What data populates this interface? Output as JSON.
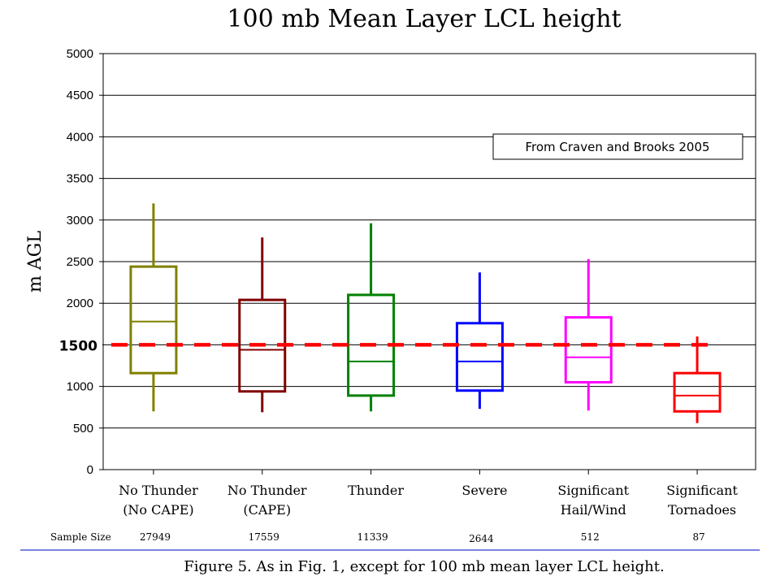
{
  "chart_data": {
    "type": "box",
    "title": "100 mb Mean Layer LCL height",
    "ylabel": "m AGL",
    "ylim": [
      0,
      5000
    ],
    "yticks": [
      0,
      500,
      1000,
      1500,
      2000,
      2500,
      3000,
      3500,
      4000,
      4500,
      5000
    ],
    "grid": true,
    "categories": [
      {
        "label": "No Thunder",
        "sublabel": "(No CAPE)"
      },
      {
        "label": "No Thunder",
        "sublabel": "(CAPE)"
      },
      {
        "label": "Thunder",
        "sublabel": ""
      },
      {
        "label": "Severe",
        "sublabel": ""
      },
      {
        "label": "Significant",
        "sublabel": "Hail/Wind"
      },
      {
        "label": "Significant",
        "sublabel": "Tornadoes"
      }
    ],
    "boxes": [
      {
        "whisker_low": 700,
        "q1": 1160,
        "median": 1780,
        "q3": 2440,
        "whisker_high": 3200,
        "color": "#808000"
      },
      {
        "whisker_low": 690,
        "q1": 940,
        "median": 1440,
        "q3": 2040,
        "whisker_high": 2790,
        "color": "#800000"
      },
      {
        "whisker_low": 700,
        "q1": 890,
        "median": 1300,
        "q3": 2100,
        "whisker_high": 2960,
        "color": "#008000"
      },
      {
        "whisker_low": 730,
        "q1": 950,
        "median": 1300,
        "q3": 1760,
        "whisker_high": 2370,
        "color": "#0000ff"
      },
      {
        "whisker_low": 710,
        "q1": 1050,
        "median": 1350,
        "q3": 1830,
        "whisker_high": 2530,
        "color": "#ff00ff"
      },
      {
        "whisker_low": 560,
        "q1": 700,
        "median": 890,
        "q3": 1160,
        "whisker_high": 1600,
        "color": "#ff0000"
      }
    ],
    "reference_line": {
      "value": 1500,
      "label": "1500",
      "color": "#ff0000"
    },
    "sample_size_label": "Sample Size",
    "sample_sizes": [
      "27949",
      "17559",
      "11339",
      "2644",
      "512",
      "87"
    ],
    "annotation": "From Craven and Brooks 2005",
    "caption": "Figure 5. As in Fig. 1, except for 100 mb mean layer LCL height."
  }
}
